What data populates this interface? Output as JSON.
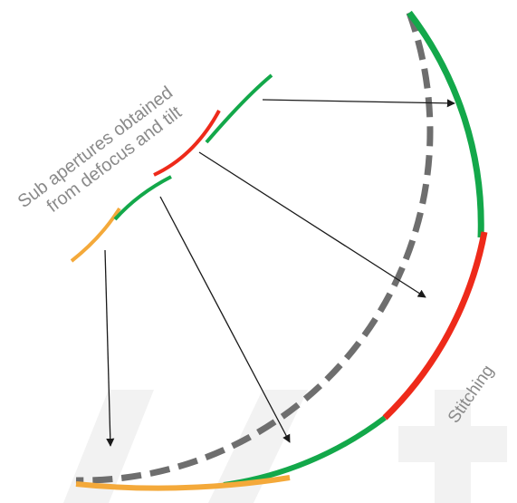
{
  "labels": {
    "sub_apertures_line1": "Sub apertures obtained",
    "sub_apertures_line2": "from defocus and tilt",
    "stitching": "Stitching"
  },
  "colors": {
    "green": "#13a84a",
    "red": "#ee2a1a",
    "orange": "#f4a93a",
    "dashed_gray": "#6e6e6e",
    "arrow": "#1a1a1a",
    "text": "#8a8a8a",
    "watermark": "#f2f2f2"
  }
}
